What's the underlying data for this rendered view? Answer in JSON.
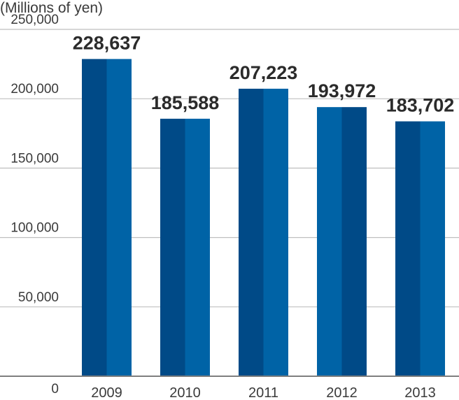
{
  "chart_data": {
    "type": "bar",
    "unit_label": "(Millions of yen)",
    "categories": [
      "2009",
      "2010",
      "2011",
      "2012",
      "2013"
    ],
    "values": [
      228637,
      185588,
      207223,
      193972,
      183702
    ],
    "data_labels": [
      "228,637",
      "185,588",
      "207,223",
      "193,972",
      "183,702"
    ],
    "ylim": [
      0,
      250000
    ],
    "yticks": [
      0,
      50000,
      100000,
      150000,
      200000,
      250000
    ],
    "ytick_labels": [
      "0",
      "50,000",
      "100,000",
      "150,000",
      "200,000",
      "250,000"
    ],
    "grid": true,
    "colors": {
      "left_half_a": "#004a87",
      "right_half_a": "#0063a6",
      "left_half_b": "#0063a6",
      "right_half_b": "#004a87",
      "grid": "#bfbfbf",
      "axis": "#7f7f7f"
    }
  }
}
